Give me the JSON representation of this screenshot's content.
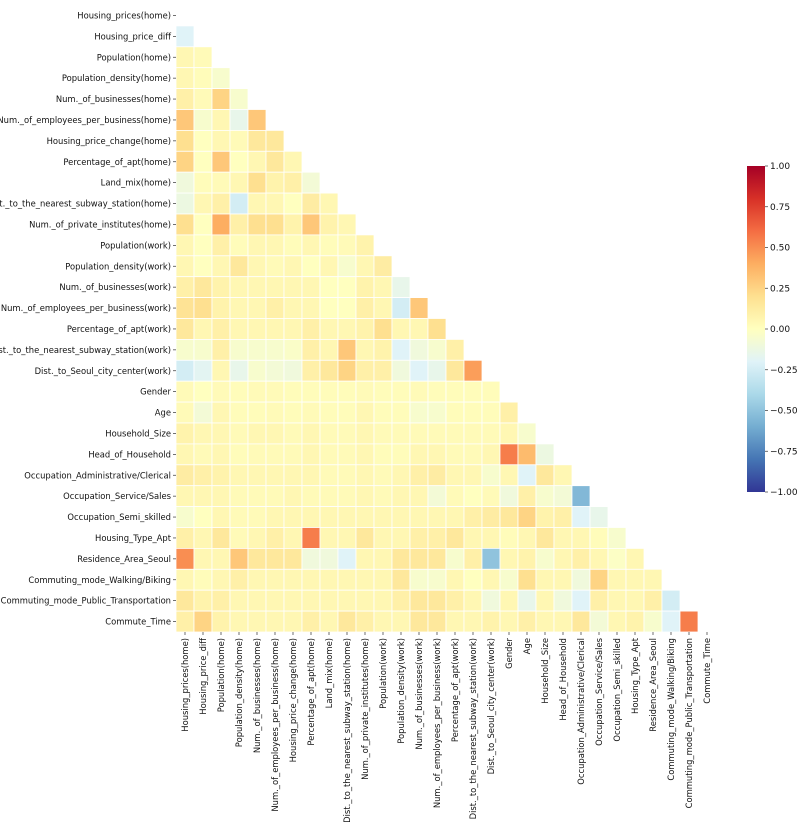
{
  "chart_data": {
    "type": "heatmap",
    "title": "",
    "mask": "upper-triangle",
    "labels": [
      "Housing_prices(home)",
      "Housing_price_diff",
      "Population(home)",
      "Population_density(home)",
      "Num._of_businesses(home)",
      "Num._of_employees_per_business(home)",
      "Housing_price_change(home)",
      "Percentage_of_apt(home)",
      "Land_mix(home)",
      "Dist._to_the_nearest_subway_station(home)",
      "Num._of_private_institutes(home)",
      "Population(work)",
      "Population_density(work)",
      "Num._of_businesses(work)",
      "Num._of_employees_per_business(work)",
      "Percentage_of_apt(work)",
      "Dist._to_the_nearest_subway_station(work)",
      "Dist._to_Seoul_city_center(work)",
      "Gender",
      "Age",
      "Household_Size",
      "Head_of_Household",
      "Occupation_Administrative/Clerical",
      "Occupation_Service/Sales",
      "Occupation_Semi_skilled",
      "Housing_Type_Apt",
      "Residence_Area_Seoul",
      "Commuting_mode_Walking/Biking",
      "Commuting_mode_Public_Transportation",
      "Commute_Time"
    ],
    "matrix": [
      [],
      [
        -0.2
      ],
      [
        0.05,
        0.03
      ],
      [
        0.05,
        0.02,
        -0.05
      ],
      [
        0.1,
        0.03,
        0.25,
        -0.05
      ],
      [
        0.3,
        -0.05,
        0.05,
        -0.15,
        0.3
      ],
      [
        0.2,
        0.0,
        0.05,
        0.03,
        0.15,
        0.15
      ],
      [
        0.25,
        0.0,
        0.3,
        0.0,
        0.05,
        0.15,
        0.05
      ],
      [
        -0.1,
        0.02,
        0.03,
        0.05,
        0.2,
        0.08,
        0.1,
        -0.08
      ],
      [
        -0.12,
        0.05,
        0.1,
        -0.25,
        0.05,
        0.05,
        0.0,
        0.12,
        0.05
      ],
      [
        0.2,
        0.0,
        0.4,
        0.1,
        0.2,
        0.2,
        0.08,
        0.3,
        0.08,
        0.05
      ],
      [
        0.05,
        0.0,
        0.1,
        0.02,
        0.05,
        0.05,
        0.02,
        0.05,
        0.02,
        0.03,
        0.08
      ],
      [
        0.05,
        0.0,
        0.05,
        0.15,
        0.05,
        0.03,
        0.05,
        0.0,
        0.05,
        -0.05,
        0.05,
        0.12
      ],
      [
        0.1,
        0.15,
        0.08,
        0.05,
        0.05,
        0.05,
        0.05,
        0.05,
        0.0,
        0.0,
        0.08,
        0.05,
        -0.15
      ],
      [
        0.18,
        0.2,
        0.08,
        0.05,
        0.05,
        0.1,
        0.05,
        0.05,
        0.0,
        0.0,
        0.1,
        0.05,
        -0.25,
        0.3
      ],
      [
        0.15,
        0.05,
        0.1,
        0.05,
        0.05,
        0.05,
        0.05,
        0.1,
        0.05,
        0.05,
        0.08,
        0.2,
        0.05,
        0.05,
        0.2
      ],
      [
        -0.05,
        -0.05,
        0.1,
        -0.05,
        -0.05,
        -0.05,
        -0.03,
        0.1,
        0.05,
        0.3,
        0.05,
        0.08,
        -0.2,
        -0.1,
        -0.05,
        0.1
      ],
      [
        -0.25,
        -0.18,
        0.05,
        -0.15,
        -0.05,
        -0.08,
        -0.1,
        0.1,
        0.15,
        0.25,
        0.1,
        0.1,
        -0.1,
        -0.2,
        -0.15,
        0.15,
        0.45
      ],
      [
        0.03,
        0.0,
        0.03,
        0.02,
        0.03,
        0.03,
        0.02,
        0.02,
        0.02,
        0.02,
        0.03,
        0.02,
        0.02,
        0.03,
        0.02,
        0.02,
        0.02,
        0.02
      ],
      [
        0.03,
        -0.08,
        0.05,
        0.02,
        0.02,
        0.03,
        0.02,
        0.03,
        0.02,
        0.02,
        0.05,
        0.02,
        0.02,
        -0.05,
        -0.05,
        0.02,
        0.02,
        0.02,
        0.1
      ],
      [
        0.08,
        0.05,
        0.05,
        0.03,
        0.05,
        0.05,
        0.03,
        0.05,
        0.03,
        0.03,
        0.05,
        0.03,
        0.03,
        0.03,
        0.03,
        0.03,
        0.03,
        0.03,
        0.05,
        -0.05
      ],
      [
        0.05,
        0.03,
        0.05,
        0.02,
        0.03,
        0.03,
        0.03,
        0.05,
        0.03,
        0.03,
        0.05,
        0.02,
        0.02,
        0.05,
        0.05,
        0.03,
        0.03,
        0.05,
        0.55,
        0.35,
        -0.12
      ],
      [
        0.12,
        0.1,
        0.08,
        0.05,
        0.05,
        0.05,
        0.05,
        0.05,
        0.03,
        0.03,
        0.05,
        0.03,
        0.05,
        0.1,
        0.12,
        0.05,
        0.05,
        -0.05,
        0.05,
        -0.2,
        0.15,
        0.05
      ],
      [
        0.05,
        0.05,
        0.05,
        0.03,
        0.03,
        0.03,
        0.05,
        0.03,
        0.03,
        0.03,
        0.05,
        0.03,
        0.05,
        0.05,
        -0.08,
        0.03,
        0.0,
        0.03,
        -0.1,
        0.1,
        -0.05,
        -0.08,
        -0.55
      ],
      [
        -0.05,
        0.0,
        0.05,
        0.03,
        0.03,
        0.05,
        0.05,
        0.05,
        0.05,
        0.05,
        0.05,
        0.05,
        0.05,
        0.05,
        0.05,
        0.05,
        0.1,
        0.12,
        0.15,
        0.25,
        0.08,
        0.1,
        -0.2,
        -0.15
      ],
      [
        0.1,
        0.05,
        0.15,
        0.03,
        0.05,
        0.1,
        0.05,
        0.55,
        0.05,
        0.05,
        0.15,
        0.05,
        0.05,
        0.1,
        0.1,
        0.15,
        0.05,
        0.05,
        0.02,
        0.05,
        0.15,
        0.05,
        0.05,
        0.02,
        -0.05
      ],
      [
        0.5,
        0.05,
        0.05,
        0.3,
        0.15,
        0.15,
        0.15,
        -0.1,
        -0.1,
        -0.2,
        0.05,
        0.05,
        0.15,
        0.15,
        0.15,
        -0.05,
        0.1,
        -0.5,
        0.05,
        0.08,
        -0.05,
        0.05,
        0.1,
        0.05,
        -0.02,
        0.05
      ],
      [
        0.05,
        0.02,
        0.05,
        0.1,
        0.05,
        0.05,
        0.05,
        0.05,
        0.05,
        0.05,
        0.05,
        0.05,
        0.15,
        -0.05,
        -0.05,
        0.05,
        0.0,
        0.05,
        -0.05,
        0.2,
        0.05,
        0.05,
        -0.1,
        0.25,
        0.05,
        0.05,
        0.05
      ],
      [
        0.15,
        0.08,
        0.1,
        0.05,
        0.05,
        0.05,
        0.05,
        0.05,
        0.05,
        0.05,
        0.05,
        0.05,
        0.1,
        0.15,
        0.15,
        0.1,
        0.05,
        -0.1,
        0.05,
        -0.15,
        0.05,
        -0.1,
        -0.2,
        0.1,
        0.05,
        0.05,
        0.1,
        -0.25
      ],
      [
        0.1,
        0.25,
        0.08,
        0.05,
        0.05,
        0.05,
        0.05,
        0.1,
        0.05,
        0.15,
        0.1,
        0.05,
        0.05,
        0.15,
        0.15,
        0.05,
        0.05,
        0.08,
        0.05,
        0.1,
        0.05,
        0.05,
        0.15,
        -0.08,
        0.05,
        0.08,
        -0.05,
        -0.2,
        0.55
      ]
    ],
    "colorbar": {
      "vmin": -1.0,
      "vmax": 1.0,
      "ticks": [
        1.0,
        0.75,
        0.5,
        0.25,
        0.0,
        -0.25,
        -0.5,
        -0.75,
        -1.0
      ],
      "tick_labels": [
        "1.00",
        "0.75",
        "0.50",
        "0.25",
        "0.00",
        "−0.25",
        "−0.50",
        "−0.75",
        "−1.00"
      ],
      "colormap": "RdYlBu_r"
    },
    "colorscale": [
      "#313695",
      "#4575b4",
      "#74add1",
      "#abd9e9",
      "#e0f3f8",
      "#ffffbf",
      "#fee090",
      "#fdae61",
      "#f46d43",
      "#d73027",
      "#a50026"
    ]
  }
}
